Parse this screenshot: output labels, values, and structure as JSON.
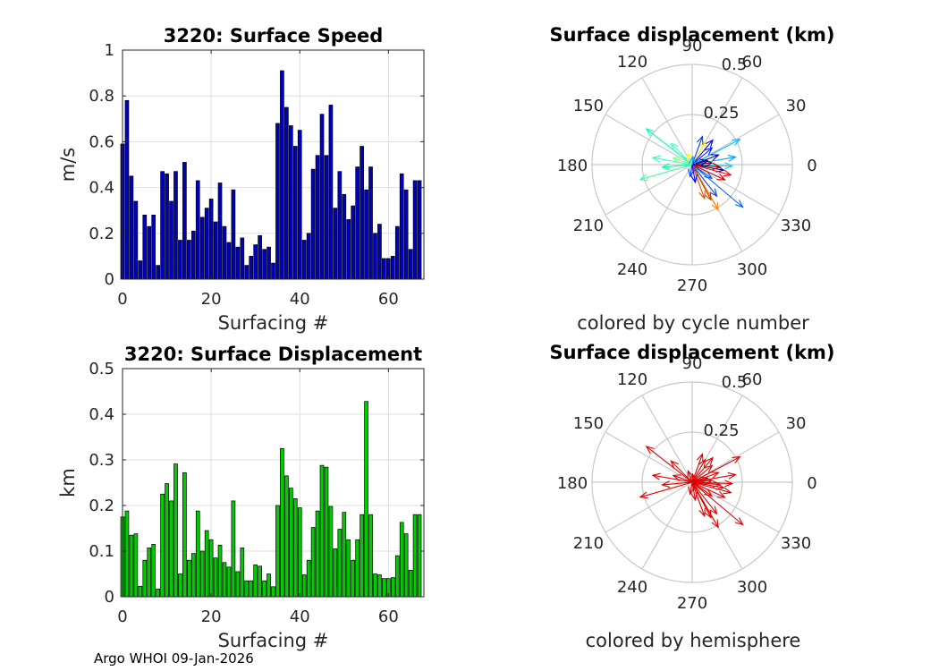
{
  "footer": "Argo WHOI 09-Jan-2026",
  "chart_data": [
    {
      "id": "speed",
      "type": "bar",
      "title": "3220: Surface Speed",
      "xlabel": "Surfacing #",
      "ylabel": "m/s",
      "xlim": [
        0,
        68
      ],
      "ylim": [
        0,
        1
      ],
      "xticks": [
        0,
        20,
        40,
        60
      ],
      "yticks": [
        0,
        0.2,
        0.4,
        0.6,
        0.8,
        1
      ],
      "ytick_labels": [
        "0",
        "0.2",
        "0.4",
        "0.6",
        "0.8",
        "1"
      ],
      "grid": true,
      "bar_color": "#0000bf",
      "x": [
        0,
        1,
        2,
        3,
        4,
        5,
        6,
        7,
        8,
        9,
        10,
        11,
        12,
        13,
        14,
        15,
        16,
        17,
        18,
        19,
        20,
        21,
        22,
        23,
        24,
        25,
        26,
        27,
        28,
        29,
        30,
        31,
        32,
        33,
        34,
        35,
        36,
        37,
        38,
        39,
        40,
        41,
        42,
        43,
        44,
        45,
        46,
        47,
        48,
        49,
        50,
        51,
        52,
        53,
        54,
        55,
        56,
        57,
        58,
        59,
        60,
        61,
        62,
        63,
        64,
        65,
        66,
        67
      ],
      "values": [
        0.59,
        0.78,
        0.45,
        0.34,
        0.08,
        0.28,
        0.23,
        0.28,
        0.06,
        0.47,
        0.46,
        0.34,
        0.47,
        0.17,
        0.51,
        0.17,
        0.21,
        0.43,
        0.27,
        0.31,
        0.35,
        0.25,
        0.42,
        0.23,
        0.16,
        0.39,
        0.14,
        0.18,
        0.06,
        0.1,
        0.15,
        0.19,
        0.13,
        0.14,
        0.07,
        0.68,
        0.91,
        0.75,
        0.67,
        0.58,
        0.65,
        0.17,
        0.2,
        0.48,
        0.54,
        0.72,
        0.54,
        0.76,
        0.31,
        0.47,
        0.37,
        0.26,
        0.32,
        0.49,
        0.58,
        0.39,
        0.49,
        0.2,
        0.24,
        0.09,
        0.09,
        0.1,
        0.23,
        0.46,
        0.39,
        0.13,
        0.43,
        0.43
      ]
    },
    {
      "id": "displacement",
      "type": "bar",
      "title": "3220: Surface Displacement",
      "xlabel": "Surfacing #",
      "ylabel": "km",
      "xlim": [
        0,
        68
      ],
      "ylim": [
        0,
        0.5
      ],
      "xticks": [
        0,
        20,
        40,
        60
      ],
      "yticks": [
        0,
        0.1,
        0.2,
        0.3,
        0.4,
        0.5
      ],
      "ytick_labels": [
        "0",
        "0.1",
        "0.2",
        "0.3",
        "0.4",
        "0.5"
      ],
      "grid": true,
      "bar_color": "#00cc00",
      "x": [
        0,
        1,
        2,
        3,
        4,
        5,
        6,
        7,
        8,
        9,
        10,
        11,
        12,
        13,
        14,
        15,
        16,
        17,
        18,
        19,
        20,
        21,
        22,
        23,
        24,
        25,
        26,
        27,
        28,
        29,
        30,
        31,
        32,
        33,
        34,
        35,
        36,
        37,
        38,
        39,
        40,
        41,
        42,
        43,
        44,
        45,
        46,
        47,
        48,
        49,
        50,
        51,
        52,
        53,
        54,
        55,
        56,
        57,
        58,
        59,
        60,
        61,
        62,
        63,
        64,
        65,
        66,
        67
      ],
      "values": [
        0.175,
        0.188,
        0.135,
        0.138,
        0.023,
        0.08,
        0.107,
        0.115,
        0.017,
        0.225,
        0.248,
        0.21,
        0.291,
        0.05,
        0.272,
        0.08,
        0.095,
        0.188,
        0.1,
        0.145,
        0.125,
        0.085,
        0.113,
        0.075,
        0.065,
        0.21,
        0.055,
        0.107,
        0.035,
        0.035,
        0.07,
        0.067,
        0.035,
        0.05,
        0.022,
        0.2,
        0.325,
        0.265,
        0.238,
        0.215,
        0.195,
        0.048,
        0.08,
        0.152,
        0.188,
        0.288,
        0.284,
        0.198,
        0.105,
        0.148,
        0.185,
        0.125,
        0.08,
        0.125,
        0.18,
        0.428,
        0.18,
        0.05,
        0.048,
        0.04,
        0.04,
        0.042,
        0.09,
        0.163,
        0.138,
        0.058,
        0.18,
        0.18
      ]
    },
    {
      "id": "polar1",
      "type": "polar",
      "title": "Surface displacement (km)",
      "caption": "colored by cycle number",
      "rlim": [
        0,
        0.5
      ],
      "rticks": [
        0.25,
        0.5
      ],
      "rtick_labels": [
        "0.25",
        "0.5"
      ],
      "theta_labels": [
        "0",
        "30",
        "60",
        "90",
        "120",
        "150",
        "180",
        "210",
        "240",
        "270",
        "300",
        "330"
      ],
      "vectors": [
        {
          "angle_deg": 142,
          "r": 0.29,
          "color": "#00ffc0"
        },
        {
          "angle_deg": 135,
          "r": 0.15,
          "color": "#40ffbf"
        },
        {
          "angle_deg": 170,
          "r": 0.2,
          "color": "#30ffc8"
        },
        {
          "angle_deg": 185,
          "r": 0.15,
          "color": "#00ffa0"
        },
        {
          "angle_deg": 196,
          "r": 0.27,
          "color": "#40ffa0"
        },
        {
          "angle_deg": 160,
          "r": 0.1,
          "color": "#80ff80"
        },
        {
          "angle_deg": 110,
          "r": 0.06,
          "color": "#ffff00"
        },
        {
          "angle_deg": 60,
          "r": 0.13,
          "color": "#ffea00"
        },
        {
          "angle_deg": 28,
          "r": 0.27,
          "color": "#00bfff"
        },
        {
          "angle_deg": 10,
          "r": 0.22,
          "color": "#00a0ff"
        },
        {
          "angle_deg": -2,
          "r": 0.2,
          "color": "#00d0ff"
        },
        {
          "angle_deg": 70,
          "r": 0.15,
          "color": "#0040ff"
        },
        {
          "angle_deg": 50,
          "r": 0.16,
          "color": "#0000ff"
        },
        {
          "angle_deg": 40,
          "r": 0.13,
          "color": "#0020ff"
        },
        {
          "angle_deg": 20,
          "r": 0.14,
          "color": "#0000c8"
        },
        {
          "angle_deg": -10,
          "r": 0.16,
          "color": "#0000a0"
        },
        {
          "angle_deg": -35,
          "r": 0.12,
          "color": "#0060ff"
        },
        {
          "angle_deg": -40,
          "r": 0.33,
          "color": "#0060ff"
        },
        {
          "angle_deg": -52,
          "r": 0.2,
          "color": "#0040ff"
        },
        {
          "angle_deg": -60,
          "r": 0.26,
          "color": "#ff8000"
        },
        {
          "angle_deg": -62,
          "r": 0.2,
          "color": "#c04000"
        },
        {
          "angle_deg": -70,
          "r": 0.18,
          "color": "#e05000"
        },
        {
          "angle_deg": -25,
          "r": 0.18,
          "color": "#c00000"
        },
        {
          "angle_deg": -15,
          "r": 0.2,
          "color": "#ff0000"
        },
        {
          "angle_deg": -5,
          "r": 0.14,
          "color": "#a00000"
        },
        {
          "angle_deg": 5,
          "r": 0.1,
          "color": "#800000"
        },
        {
          "angle_deg": -80,
          "r": 0.09,
          "color": "#0000ff"
        },
        {
          "angle_deg": -100,
          "r": 0.06,
          "color": "#0040ff"
        },
        {
          "angle_deg": 15,
          "r": 0.08,
          "color": "#000080"
        },
        {
          "angle_deg": 85,
          "r": 0.04,
          "color": "#00a0ff"
        }
      ]
    },
    {
      "id": "polar2",
      "type": "polar",
      "title": "Surface displacement (km)",
      "caption": "colored by hemisphere",
      "rlim": [
        0,
        0.5
      ],
      "rticks": [
        0.25,
        0.5
      ],
      "rtick_labels": [
        "0.25",
        "0.5"
      ],
      "theta_labels": [
        "0",
        "30",
        "60",
        "90",
        "120",
        "150",
        "180",
        "210",
        "240",
        "270",
        "300",
        "330"
      ],
      "vector_color": "#e00000",
      "vectors": [
        {
          "angle_deg": 142,
          "r": 0.29
        },
        {
          "angle_deg": 135,
          "r": 0.15
        },
        {
          "angle_deg": 170,
          "r": 0.2
        },
        {
          "angle_deg": 185,
          "r": 0.15
        },
        {
          "angle_deg": 196,
          "r": 0.27
        },
        {
          "angle_deg": 160,
          "r": 0.1
        },
        {
          "angle_deg": 110,
          "r": 0.06
        },
        {
          "angle_deg": 60,
          "r": 0.13
        },
        {
          "angle_deg": 28,
          "r": 0.27
        },
        {
          "angle_deg": 10,
          "r": 0.22
        },
        {
          "angle_deg": -2,
          "r": 0.2
        },
        {
          "angle_deg": 70,
          "r": 0.15
        },
        {
          "angle_deg": 50,
          "r": 0.16
        },
        {
          "angle_deg": 40,
          "r": 0.13
        },
        {
          "angle_deg": 20,
          "r": 0.14
        },
        {
          "angle_deg": -10,
          "r": 0.16
        },
        {
          "angle_deg": -35,
          "r": 0.12
        },
        {
          "angle_deg": -40,
          "r": 0.33
        },
        {
          "angle_deg": -52,
          "r": 0.2
        },
        {
          "angle_deg": -60,
          "r": 0.26
        },
        {
          "angle_deg": -62,
          "r": 0.2
        },
        {
          "angle_deg": -70,
          "r": 0.18
        },
        {
          "angle_deg": -25,
          "r": 0.18
        },
        {
          "angle_deg": -15,
          "r": 0.2
        },
        {
          "angle_deg": -5,
          "r": 0.14
        },
        {
          "angle_deg": 5,
          "r": 0.1
        },
        {
          "angle_deg": -80,
          "r": 0.09
        },
        {
          "angle_deg": -100,
          "r": 0.06
        },
        {
          "angle_deg": 15,
          "r": 0.08
        },
        {
          "angle_deg": 85,
          "r": 0.04
        }
      ]
    }
  ]
}
